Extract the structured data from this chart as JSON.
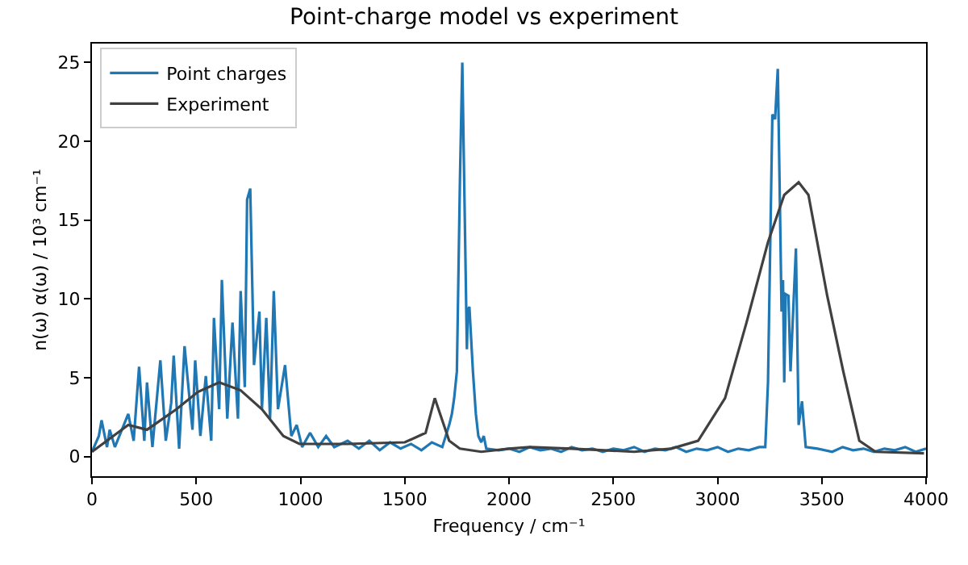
{
  "chart_data": {
    "type": "line",
    "title": "Point-charge model vs experiment",
    "xlabel": "Frequency / cm⁻¹",
    "ylabel": "n(ω) α(ω) / 10³ cm⁻¹",
    "xlim": [
      0,
      4000
    ],
    "ylim": [
      -1.25,
      26.2
    ],
    "xticks": [
      0,
      500,
      1000,
      1500,
      2000,
      2500,
      3000,
      3500,
      4000
    ],
    "yticks": [
      0,
      5,
      10,
      15,
      20,
      25
    ],
    "legend": "top left",
    "line_style": "solid",
    "marker": "none",
    "series": [
      {
        "name": "Point charges",
        "color": "#1f77b4",
        "x": [
          0,
          33,
          46,
          72,
          85,
          110,
          174,
          200,
          226,
          251,
          264,
          290,
          328,
          354,
          380,
          392,
          418,
          444,
          482,
          495,
          520,
          546,
          572,
          585,
          610,
          623,
          649,
          674,
          700,
          713,
          733,
          744,
          759,
          777,
          803,
          815,
          836,
          854,
          872,
          892,
          926,
          956,
          982,
          1008,
          1046,
          1085,
          1123,
          1162,
          1226,
          1280,
          1330,
          1380,
          1430,
          1480,
          1530,
          1580,
          1630,
          1680,
          1713,
          1726,
          1737,
          1750,
          1765,
          1776,
          1798,
          1803,
          1810,
          1827,
          1841,
          1853,
          1867,
          1879,
          1891,
          1950,
          2000,
          2050,
          2100,
          2150,
          2200,
          2250,
          2300,
          2350,
          2400,
          2450,
          2500,
          2550,
          2600,
          2650,
          2700,
          2750,
          2800,
          2850,
          2900,
          2950,
          3000,
          3050,
          3100,
          3150,
          3200,
          3229,
          3242,
          3263,
          3276,
          3289,
          3302,
          3307,
          3314,
          3320,
          3327,
          3340,
          3350,
          3376,
          3389,
          3405,
          3423,
          3480,
          3550,
          3600,
          3650,
          3700,
          3750,
          3800,
          3850,
          3900,
          3950,
          4000
        ],
        "values": [
          0.3,
          1.3,
          2.3,
          0.6,
          1.7,
          0.6,
          2.7,
          1.0,
          5.7,
          1.0,
          4.7,
          0.6,
          6.1,
          1.0,
          3.4,
          6.4,
          0.5,
          7.0,
          1.7,
          6.1,
          1.3,
          5.1,
          1.0,
          8.8,
          3.0,
          11.2,
          2.4,
          8.5,
          2.4,
          10.5,
          4.4,
          16.3,
          17.0,
          5.8,
          9.2,
          3.0,
          8.8,
          2.4,
          10.5,
          3.0,
          5.8,
          1.3,
          2.0,
          0.6,
          1.5,
          0.6,
          1.3,
          0.6,
          1.0,
          0.5,
          1.0,
          0.4,
          0.9,
          0.5,
          0.8,
          0.4,
          0.9,
          0.6,
          2.0,
          2.7,
          3.7,
          5.4,
          17.8,
          25.0,
          6.8,
          9.3,
          9.5,
          5.4,
          2.7,
          1.3,
          0.9,
          1.3,
          0.5,
          0.4,
          0.5,
          0.3,
          0.6,
          0.4,
          0.5,
          0.3,
          0.6,
          0.4,
          0.5,
          0.3,
          0.5,
          0.4,
          0.6,
          0.3,
          0.5,
          0.4,
          0.6,
          0.3,
          0.5,
          0.4,
          0.6,
          0.3,
          0.5,
          0.4,
          0.6,
          0.6,
          4.7,
          21.7,
          21.4,
          24.6,
          13.6,
          9.2,
          11.2,
          4.7,
          10.3,
          10.2,
          5.4,
          13.2,
          2.0,
          3.5,
          0.6,
          0.5,
          0.3,
          0.6,
          0.4,
          0.5,
          0.3,
          0.5,
          0.4,
          0.6,
          0.3,
          0.5
        ]
      },
      {
        "name": "Experiment",
        "color": "#404040",
        "x": [
          0,
          72,
          174,
          264,
          405,
          508,
          610,
          713,
          815,
          918,
          995,
          1226,
          1500,
          1600,
          1644,
          1713,
          1764,
          1867,
          2000,
          2100,
          2300,
          2600,
          2778,
          2907,
          3036,
          3139,
          3242,
          3320,
          3389,
          3436,
          3526,
          3603,
          3680,
          3758,
          3990
        ],
        "values": [
          0.3,
          1.0,
          2.0,
          1.7,
          3.0,
          4.1,
          4.7,
          4.2,
          3.0,
          1.3,
          0.8,
          0.8,
          0.9,
          1.5,
          3.7,
          1.0,
          0.5,
          0.3,
          0.5,
          0.6,
          0.5,
          0.3,
          0.5,
          1.0,
          3.7,
          8.5,
          13.6,
          16.6,
          17.4,
          16.6,
          10.2,
          5.4,
          1.0,
          0.3,
          0.2
        ]
      }
    ]
  }
}
